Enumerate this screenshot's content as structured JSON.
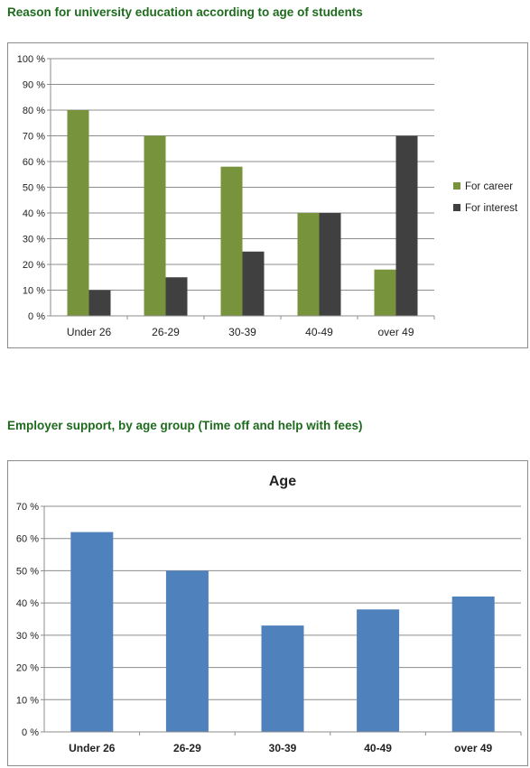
{
  "charts": [
    {
      "heading": "Reason for university education according to age of students",
      "chart_data": {
        "type": "bar",
        "title": "",
        "xlabel": "",
        "ylabel": "",
        "categories": [
          "Under 26",
          "26-29",
          "30-39",
          "40-49",
          "over 49"
        ],
        "series": [
          {
            "name": "For career",
            "values": [
              80,
              70,
              58,
              40,
              18
            ],
            "color": "#77933c"
          },
          {
            "name": "For interest",
            "values": [
              10,
              15,
              25,
              40,
              70
            ],
            "color": "#404040"
          }
        ],
        "ylim": [
          0,
          100
        ],
        "yticks": [
          "0 %",
          "10 %",
          "20 %",
          "30 %",
          "40 %",
          "50 %",
          "60 %",
          "70 %",
          "80 %",
          "90 %",
          "100 %"
        ],
        "grid": true,
        "legend": "right"
      }
    },
    {
      "heading": "Employer support, by age group (Time off and help with fees)",
      "chart_data": {
        "type": "bar",
        "title": "Age",
        "xlabel": "",
        "ylabel": "",
        "categories": [
          "Under 26",
          "26-29",
          "30-39",
          "40-49",
          "over 49"
        ],
        "series": [
          {
            "values": [
              62,
              50,
              33,
              38,
              42
            ],
            "color": "#4f81bd"
          }
        ],
        "ylim": [
          0,
          70
        ],
        "yticks": [
          "0 %",
          "10 %",
          "20 %",
          "30 %",
          "40 %",
          "50 %",
          "60 %",
          "70 %"
        ],
        "grid": true,
        "legend": "none"
      }
    }
  ]
}
